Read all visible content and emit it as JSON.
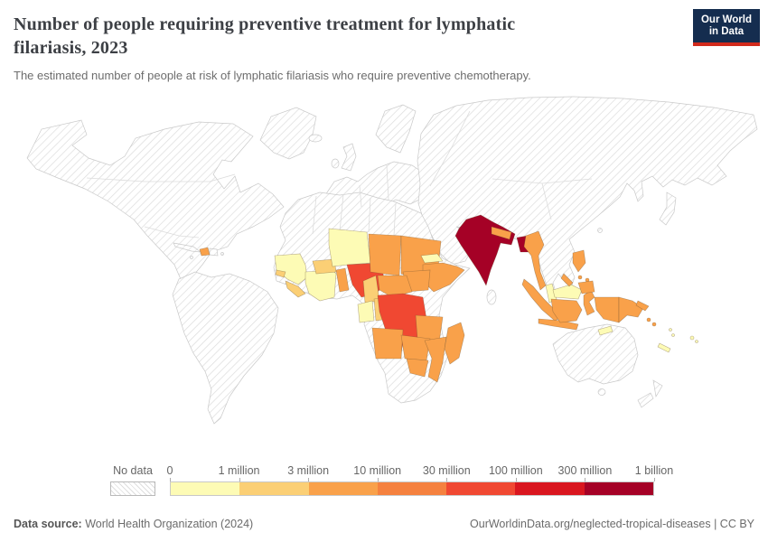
{
  "header": {
    "title": "Number of people requiring preventive treatment for lymphatic filariasis, 2023",
    "subtitle": "The estimated number of people at risk of lymphatic filariasis who require preventive chemotherapy.",
    "logo": {
      "line1": "Our World",
      "line2": "in Data",
      "bg": "#152D4F",
      "accent": "#D22A1C"
    }
  },
  "chart_data": {
    "type": "choropleth-map",
    "title": "Number of people requiring preventive treatment for lymphatic filariasis",
    "year": "2023",
    "legend": {
      "no_data_label": "No data",
      "tick_labels": [
        "0",
        "1 million",
        "3 million",
        "10 million",
        "30 million",
        "100 million",
        "300 million",
        "1 billion"
      ],
      "bins": [
        {
          "range": "0 – 1 million",
          "color": "#FDFBB5"
        },
        {
          "range": "1 million – 3 million",
          "color": "#FBCF75"
        },
        {
          "range": "3 million – 10 million",
          "color": "#F9A14A"
        },
        {
          "range": "10 million – 30 million",
          "color": "#F5813F"
        },
        {
          "range": "30 million – 100 million",
          "color": "#F04832"
        },
        {
          "range": "100 million – 300 million",
          "color": "#D9161F"
        },
        {
          "range": "300 million – 1 billion",
          "color": "#A50126"
        }
      ]
    },
    "countries": {
      "india": 6,
      "bangladesh": 6,
      "nigeria": 4,
      "dr-congo": 4,
      "chad": 2,
      "sudan": 2,
      "south-sudan": 2,
      "central-african-republic": 2,
      "ethiopia": 2,
      "tanzania": 2,
      "angola": 2,
      "zambia": 2,
      "mozambique": 2,
      "zimbabwe": 2,
      "madagascar": 2,
      "benin-togo": 2,
      "haiti": 2,
      "nepal": 2,
      "myanmar": 2,
      "indonesia": 2,
      "papua-new-guinea": 2,
      "philippines": 2,
      "solomon-islands": 2,
      "burkina-faso": 1,
      "sierra-leone-liberia": 1,
      "guinea-bissau": 1,
      "cameroon": 1,
      "congo": 1,
      "senegal-guinea": 0,
      "cote-divoire-ghana": 0,
      "niger": 0,
      "eritrea": 0,
      "gabon": 0,
      "malaysia": 0,
      "timor-leste": 0,
      "fiji": 0,
      "new-caledonia": 0,
      "vanuatu": 0
    }
  },
  "footer": {
    "source_label": "Data source:",
    "source": "World Health Organization (2024)",
    "link": "OurWorldinData.org/neglected-tropical-diseases",
    "separator": " | ",
    "license": "CC BY"
  }
}
